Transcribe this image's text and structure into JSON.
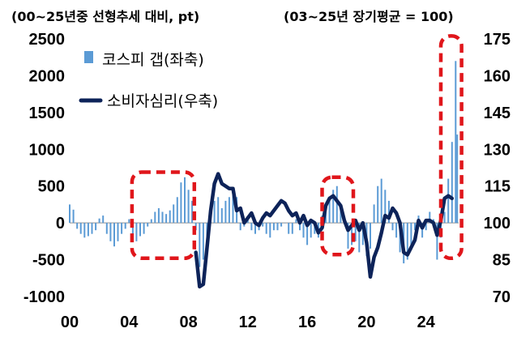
{
  "chart_data": {
    "type": "bar+line",
    "left_axis_unit": "(00~25년중 선형추세 대비, pt)",
    "right_axis_unit": "(03~25년 장기평균 = 100)",
    "left_ticks": [
      "2500",
      "2000",
      "1500",
      "1000",
      "500",
      "0",
      "-500",
      "-1000"
    ],
    "right_ticks": [
      "175",
      "160",
      "145",
      "130",
      "115",
      "100",
      "85",
      "70"
    ],
    "x_ticks": [
      "00",
      "04",
      "08",
      "12",
      "16",
      "20",
      "24"
    ],
    "ylim_left": [
      -1000,
      2500
    ],
    "ylim_right": [
      70,
      175
    ],
    "xlim": [
      2000,
      2026.2
    ],
    "bar_series": {
      "name": "코스피 갭(좌축)",
      "color": "#5b9bd5",
      "points": [
        [
          2000.0,
          250
        ],
        [
          2000.25,
          180
        ],
        [
          2000.5,
          -80
        ],
        [
          2000.75,
          -150
        ],
        [
          2001.0,
          -200
        ],
        [
          2001.25,
          -180
        ],
        [
          2001.5,
          -150
        ],
        [
          2001.75,
          -100
        ],
        [
          2002.0,
          60
        ],
        [
          2002.25,
          100
        ],
        [
          2002.5,
          -150
        ],
        [
          2002.75,
          -250
        ],
        [
          2003.0,
          -320
        ],
        [
          2003.25,
          -250
        ],
        [
          2003.5,
          -150
        ],
        [
          2003.75,
          -80
        ],
        [
          2004.0,
          50
        ],
        [
          2004.25,
          -150
        ],
        [
          2004.5,
          -250
        ],
        [
          2004.75,
          -180
        ],
        [
          2005.0,
          -150
        ],
        [
          2005.25,
          -50
        ],
        [
          2005.5,
          50
        ],
        [
          2005.75,
          150
        ],
        [
          2006.0,
          200
        ],
        [
          2006.25,
          150
        ],
        [
          2006.5,
          120
        ],
        [
          2006.75,
          170
        ],
        [
          2007.0,
          250
        ],
        [
          2007.25,
          350
        ],
        [
          2007.5,
          550
        ],
        [
          2007.75,
          620
        ],
        [
          2008.0,
          450
        ],
        [
          2008.25,
          300
        ],
        [
          2008.5,
          -100
        ],
        [
          2008.75,
          -600
        ],
        [
          2009.0,
          -500
        ],
        [
          2009.25,
          -300
        ],
        [
          2009.5,
          100
        ],
        [
          2009.75,
          300
        ],
        [
          2010.0,
          350
        ],
        [
          2010.25,
          200
        ],
        [
          2010.5,
          300
        ],
        [
          2010.75,
          350
        ],
        [
          2011.0,
          400
        ],
        [
          2011.25,
          350
        ],
        [
          2011.5,
          -100
        ],
        [
          2011.75,
          -50
        ],
        [
          2012.0,
          50
        ],
        [
          2012.25,
          -100
        ],
        [
          2012.5,
          -150
        ],
        [
          2012.75,
          -100
        ],
        [
          2013.0,
          -50
        ],
        [
          2013.25,
          -150
        ],
        [
          2013.5,
          -200
        ],
        [
          2013.75,
          -100
        ],
        [
          2014.0,
          -100
        ],
        [
          2014.25,
          -50
        ],
        [
          2014.5,
          0
        ],
        [
          2014.75,
          -150
        ],
        [
          2015.0,
          -150
        ],
        [
          2015.25,
          50
        ],
        [
          2015.5,
          -100
        ],
        [
          2015.75,
          -200
        ],
        [
          2016.0,
          -300
        ],
        [
          2016.25,
          -200
        ],
        [
          2016.5,
          -150
        ],
        [
          2016.75,
          -200
        ],
        [
          2017.0,
          100
        ],
        [
          2017.25,
          250
        ],
        [
          2017.5,
          350
        ],
        [
          2017.75,
          450
        ],
        [
          2018.0,
          500
        ],
        [
          2018.25,
          250
        ],
        [
          2018.5,
          0
        ],
        [
          2018.75,
          -350
        ],
        [
          2019.0,
          -300
        ],
        [
          2019.25,
          -250
        ],
        [
          2019.5,
          -400
        ],
        [
          2019.75,
          -300
        ],
        [
          2020.0,
          -450
        ],
        [
          2020.25,
          -350
        ],
        [
          2020.5,
          250
        ],
        [
          2020.75,
          500
        ],
        [
          2021.0,
          600
        ],
        [
          2021.25,
          450
        ],
        [
          2021.5,
          300
        ],
        [
          2021.75,
          -100
        ],
        [
          2022.0,
          -200
        ],
        [
          2022.25,
          -400
        ],
        [
          2022.5,
          -550
        ],
        [
          2022.75,
          -500
        ],
        [
          2023.0,
          -300
        ],
        [
          2023.25,
          -100
        ],
        [
          2023.5,
          100
        ],
        [
          2023.75,
          -200
        ],
        [
          2024.0,
          -100
        ],
        [
          2024.25,
          150
        ],
        [
          2024.5,
          50
        ],
        [
          2024.75,
          -500
        ],
        [
          2025.0,
          -200
        ],
        [
          2025.25,
          150
        ],
        [
          2025.5,
          600
        ],
        [
          2025.75,
          1100
        ],
        [
          2026.0,
          2200
        ],
        [
          2026.1,
          1200
        ]
      ]
    },
    "line_series": {
      "name": "소비자심리(우축)",
      "color": "#0d2359",
      "points": [
        [
          2008.5,
          88
        ],
        [
          2008.75,
          74
        ],
        [
          2009.0,
          75
        ],
        [
          2009.25,
          90
        ],
        [
          2009.5,
          105
        ],
        [
          2009.75,
          116
        ],
        [
          2010.0,
          120
        ],
        [
          2010.25,
          116
        ],
        [
          2010.5,
          115
        ],
        [
          2010.75,
          114
        ],
        [
          2011.0,
          114
        ],
        [
          2011.25,
          105
        ],
        [
          2011.5,
          106
        ],
        [
          2011.75,
          100
        ],
        [
          2012.0,
          102
        ],
        [
          2012.25,
          104
        ],
        [
          2012.5,
          100
        ],
        [
          2012.75,
          99
        ],
        [
          2013.0,
          102
        ],
        [
          2013.25,
          104
        ],
        [
          2013.5,
          103
        ],
        [
          2013.75,
          105
        ],
        [
          2014.0,
          107
        ],
        [
          2014.25,
          109
        ],
        [
          2014.5,
          108
        ],
        [
          2014.75,
          105
        ],
        [
          2015.0,
          103
        ],
        [
          2015.25,
          104
        ],
        [
          2015.5,
          100
        ],
        [
          2015.75,
          103
        ],
        [
          2016.0,
          99
        ],
        [
          2016.25,
          101
        ],
        [
          2016.5,
          100
        ],
        [
          2016.75,
          96
        ],
        [
          2017.0,
          98
        ],
        [
          2017.25,
          107
        ],
        [
          2017.5,
          110
        ],
        [
          2017.75,
          111
        ],
        [
          2018.0,
          109
        ],
        [
          2018.25,
          107
        ],
        [
          2018.5,
          101
        ],
        [
          2018.75,
          97
        ],
        [
          2019.0,
          99
        ],
        [
          2019.25,
          101
        ],
        [
          2019.5,
          97
        ],
        [
          2019.75,
          100
        ],
        [
          2020.0,
          92
        ],
        [
          2020.25,
          78
        ],
        [
          2020.5,
          86
        ],
        [
          2020.75,
          90
        ],
        [
          2021.0,
          96
        ],
        [
          2021.25,
          103
        ],
        [
          2021.5,
          102
        ],
        [
          2021.75,
          106
        ],
        [
          2022.0,
          104
        ],
        [
          2022.25,
          100
        ],
        [
          2022.5,
          88
        ],
        [
          2022.75,
          87
        ],
        [
          2023.0,
          90
        ],
        [
          2023.25,
          93
        ],
        [
          2023.5,
          101
        ],
        [
          2023.75,
          98
        ],
        [
          2024.0,
          101
        ],
        [
          2024.25,
          101
        ],
        [
          2024.5,
          100
        ],
        [
          2024.75,
          95
        ],
        [
          2025.0,
          101
        ],
        [
          2025.25,
          110
        ],
        [
          2025.5,
          111
        ],
        [
          2025.75,
          110
        ]
      ]
    },
    "highlight_regions": [
      {
        "x0": 2004.2,
        "x1": 2008.4,
        "y0_left": -480,
        "y1_left": 690
      },
      {
        "x0": 2017.0,
        "x1": 2019.1,
        "y0_left": -430,
        "y1_left": 620
      },
      {
        "x0": 2025.0,
        "x1": 2026.4,
        "y0_left": -480,
        "y1_left": 2540
      }
    ],
    "legend_position": "top-left"
  }
}
